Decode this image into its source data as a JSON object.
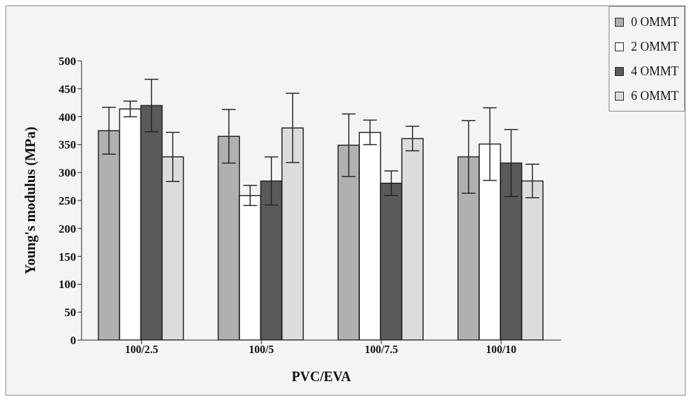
{
  "chart_data": {
    "type": "bar",
    "xlabel": "PVC/EVA",
    "ylabel": "Young's modulus (MPa)",
    "categories": [
      "100/2.5",
      "100/5",
      "100/7.5",
      "100/10"
    ],
    "series": [
      {
        "name": "0 OMMT",
        "color": "#b0b0b0",
        "values": [
          375,
          365,
          349,
          328
        ],
        "errors": [
          42,
          48,
          56,
          65
        ]
      },
      {
        "name": "2 OMMT",
        "color": "#ffffff",
        "values": [
          414,
          259,
          372,
          351
        ],
        "errors": [
          14,
          18,
          22,
          65
        ]
      },
      {
        "name": "4 OMMT",
        "color": "#5a5a5a",
        "values": [
          420,
          285,
          281,
          317
        ],
        "errors": [
          47,
          43,
          22,
          60
        ]
      },
      {
        "name": "6 OMMT",
        "color": "#dcdcdc",
        "values": [
          328,
          380,
          361,
          285
        ],
        "errors": [
          44,
          62,
          22,
          30
        ]
      }
    ],
    "ylim": [
      0,
      500
    ],
    "yticks": [
      0,
      50,
      100,
      150,
      200,
      250,
      300,
      350,
      400,
      450,
      500
    ],
    "grid": false,
    "legend": "top right"
  }
}
